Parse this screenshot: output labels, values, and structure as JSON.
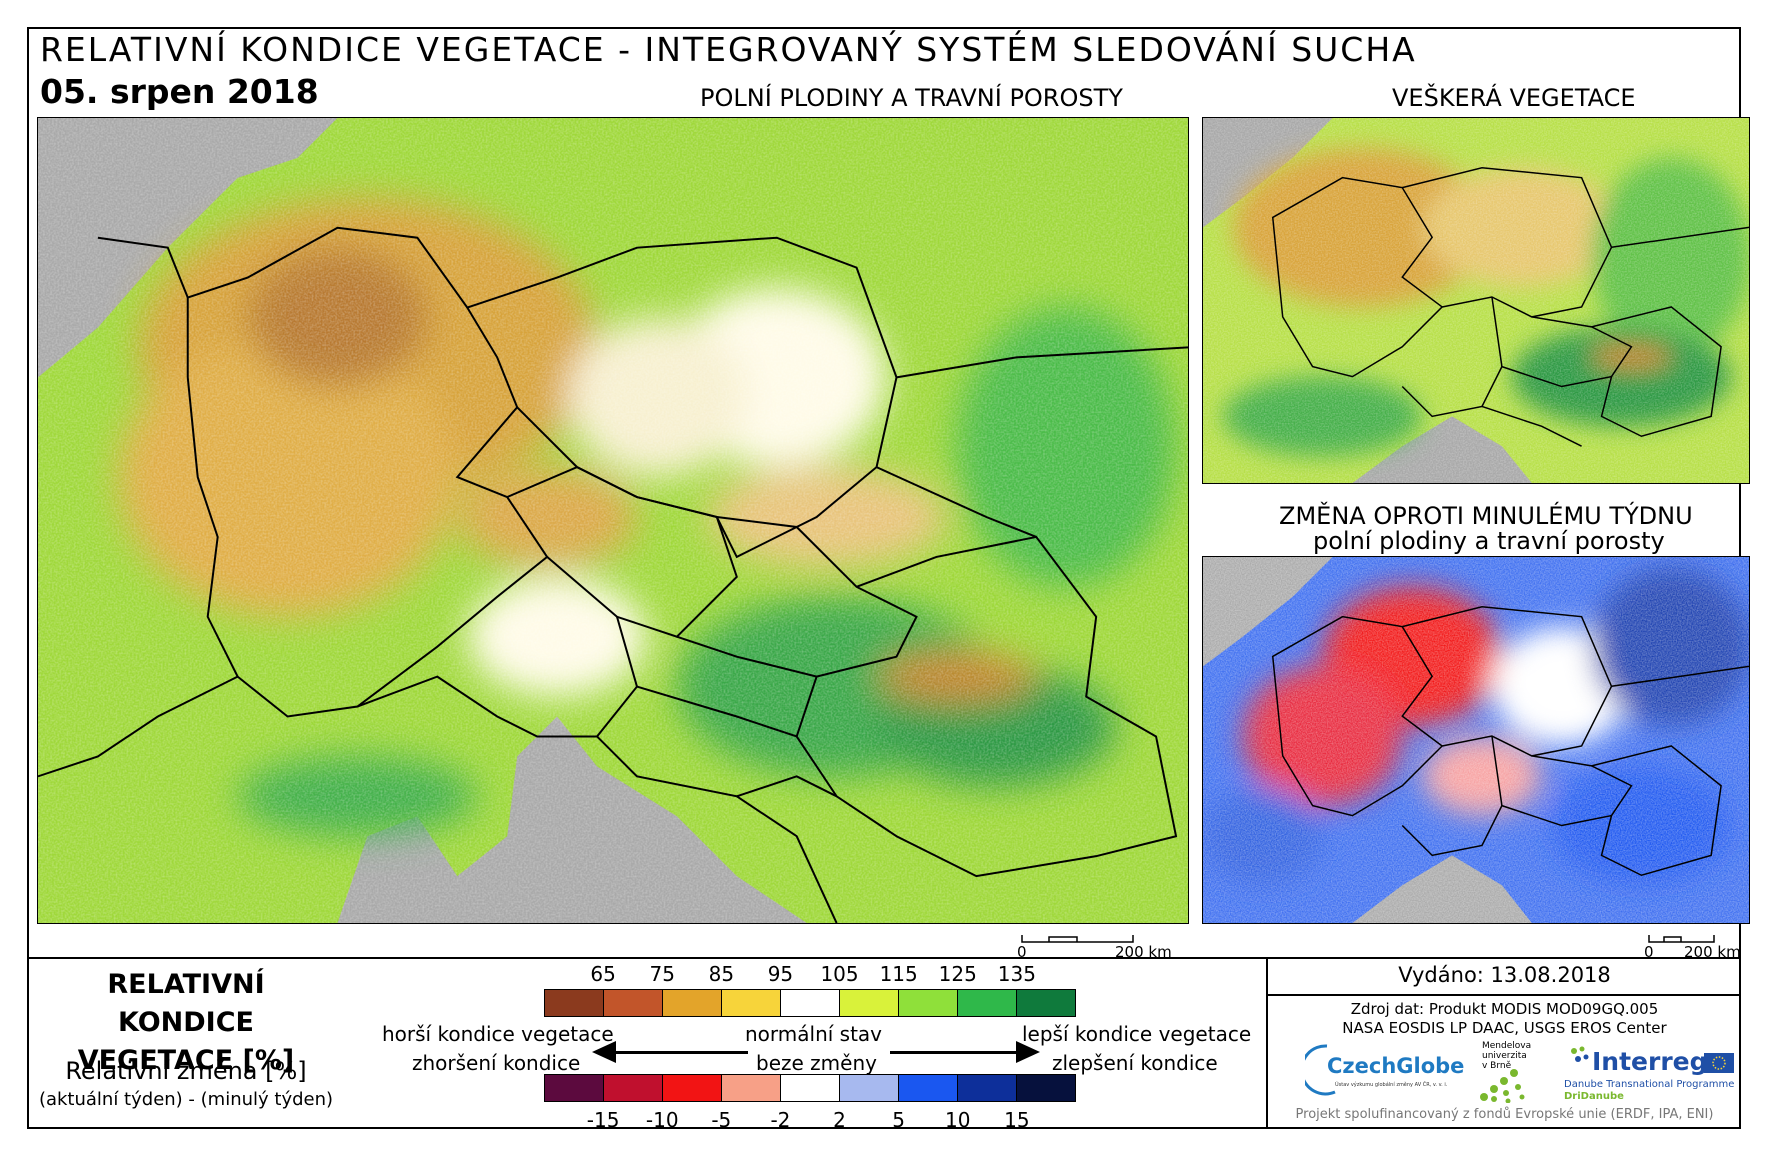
{
  "header": {
    "title": "RELATIVNÍ KONDICE VEGETACE - INTEGROVANÝ SYSTÉM SLEDOVÁNÍ SUCHA",
    "date": "05. srpen 2018"
  },
  "panels": {
    "main_title": "POLNÍ PLODINY A TRAVNÍ POROSTY",
    "all_vegetation_title": "VEŠKERÁ VEGETACE",
    "change_title_line1": "ZMĚNA OPROTI MINULÉMU TÝDNU",
    "change_title_line2": "polní plodiny a travní porosty"
  },
  "scalebars": {
    "main": {
      "zero": "0",
      "label": "200 km"
    },
    "change": {
      "zero": "0",
      "label": "200 km"
    }
  },
  "legend": {
    "title_line1": "RELATIVNÍ KONDICE",
    "title_line2": "VEGETACE [%]",
    "change_title": "Relativní změna [%]",
    "change_formula": "(aktuální týden) - (minulý týden)",
    "condition_ticks": [
      "65",
      "75",
      "85",
      "95",
      "105",
      "115",
      "125",
      "135"
    ],
    "condition_colors": [
      "#8b3a1e",
      "#c2552a",
      "#e3a42a",
      "#f7d43a",
      "#ffffff",
      "#d9f23a",
      "#8fe03a",
      "#2fb84a",
      "#0f7a3c"
    ],
    "change_ticks": [
      "-15",
      "-10",
      "-5",
      "-2",
      "2",
      "5",
      "10",
      "15"
    ],
    "change_colors": [
      "#5c0a3e",
      "#c0102e",
      "#f21414",
      "#f7a087",
      "#ffffff",
      "#a7b9ef",
      "#1a57f0",
      "#0d2f9a",
      "#06113d"
    ],
    "worse_condition": "horší kondice vegetace",
    "normal_state": "normální stav",
    "better_condition": "lepší kondice vegetace",
    "worsening": "zhoršení kondice",
    "no_change": "beze změny",
    "improvement": "zlepšení kondice"
  },
  "info": {
    "issued": "Vydáno: 13.08.2018",
    "source_line1": "Zdroj dat: Produkt MODIS MOD09GQ.005",
    "source_line2": "NASA EOSDIS LP DAAC, USGS EROS Center",
    "footer": "Projekt spolufinancovaný z fondů Evropské unie (ERDF, IPA, ENI)"
  },
  "logos": {
    "czechglobe": "CzechGlobe",
    "czechglobe_sub": "Ústav výzkumu globální změny AV ČR, v. v. i.",
    "mendel": "Mendelova univerzita v Brně",
    "interreg": "Interreg",
    "interreg_sub1": "Danube Transnational Programme",
    "interreg_sub2": "DriDanube"
  }
}
